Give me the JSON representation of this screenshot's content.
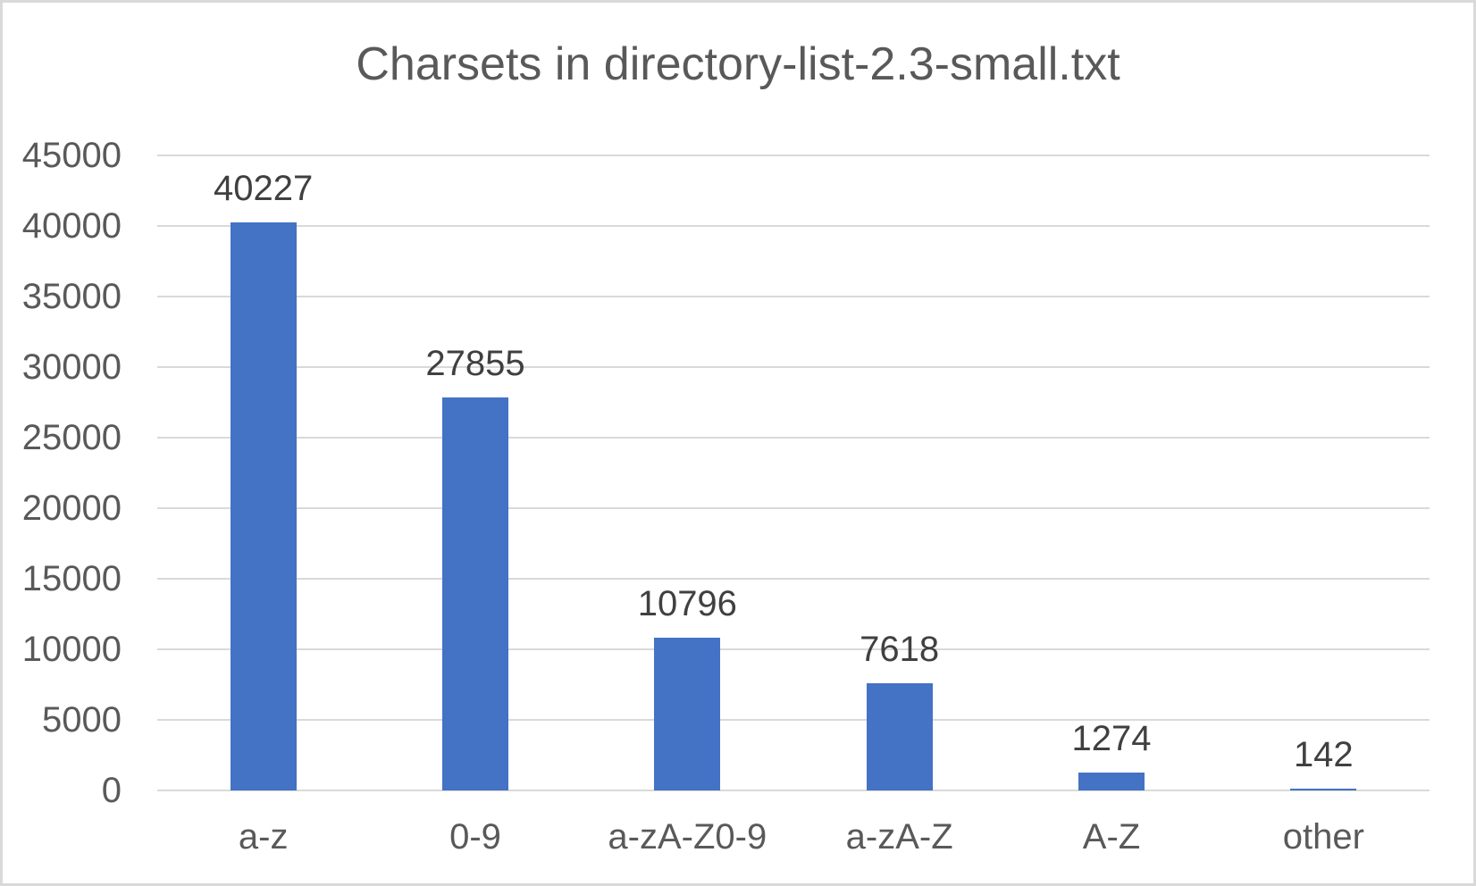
{
  "page": {
    "background_color": "#FFFFFF",
    "border_color": "#D9D9D9"
  },
  "chart_data": {
    "type": "bar",
    "title": "Charsets in directory-list-2.3-small.txt",
    "categories": [
      "a-z",
      "0-9",
      "a-zA-Z0-9",
      "a-zA-Z",
      "A-Z",
      "other"
    ],
    "values": [
      40227,
      27855,
      10796,
      7618,
      1274,
      142
    ],
    "data_labels": [
      "40227",
      "27855",
      "10796",
      "7618",
      "1274",
      "142"
    ],
    "xlabel": "",
    "ylabel": "",
    "ylim": [
      0,
      45000
    ],
    "ytick_step": 5000,
    "yticks": [
      "45000",
      "40000",
      "35000",
      "30000",
      "25000",
      "20000",
      "15000",
      "10000",
      "5000",
      "0"
    ],
    "grid": true,
    "legend_position": "none",
    "bar_color": "#4472C4",
    "gridline_color": "#D9D9D9",
    "title_color": "#595959",
    "tick_label_color": "#595959",
    "data_label_color": "#404040"
  }
}
